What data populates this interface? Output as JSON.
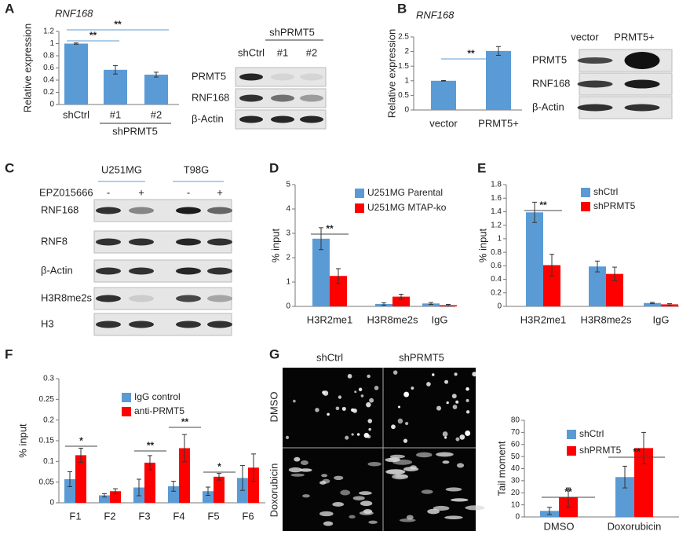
{
  "chart_data": [
    {
      "type": "bar",
      "title": "RNF168",
      "y_label": "Relative expression",
      "categories": [
        "shCtrl",
        "#1",
        "#2"
      ],
      "group_label": "shPRMT5",
      "values": [
        1.0,
        0.57,
        0.49
      ],
      "errors": [
        0.01,
        0.07,
        0.04
      ],
      "color": "#5b9bd5",
      "ylim": [
        0,
        1.2
      ],
      "yticks": [
        0,
        0.2,
        0.4,
        0.6,
        0.8,
        1,
        1.2
      ],
      "annotations": [
        "**",
        "**"
      ]
    },
    {
      "type": "bar",
      "title": "RNF168",
      "y_label": "Relative expression",
      "categories": [
        "vector",
        "PRMT5+"
      ],
      "values": [
        1.0,
        2.02
      ],
      "errors": [
        0.01,
        0.15
      ],
      "color": "#5b9bd5",
      "ylim": [
        0,
        2.5
      ],
      "yticks": [
        0,
        0.5,
        1,
        1.5,
        2,
        2.5
      ],
      "annotations": [
        "**"
      ]
    },
    {
      "type": "bar",
      "y_label": "% input",
      "categories": [
        "H3R2me1",
        "H3R8me2s",
        "IgG"
      ],
      "series": [
        {
          "name": "U251MG Parental",
          "color": "#5b9bd5",
          "values": [
            2.78,
            0.1,
            0.12
          ],
          "errors": [
            0.45,
            0.05,
            0.04
          ]
        },
        {
          "name": "U251MG MTAP-ko",
          "color": "#ff0000",
          "values": [
            1.25,
            0.4,
            0.05
          ],
          "errors": [
            0.3,
            0.1,
            0.03
          ]
        }
      ],
      "ylim": [
        0,
        5
      ],
      "yticks": [
        0,
        1,
        2,
        3,
        4,
        5
      ],
      "annotations": [
        "**"
      ]
    },
    {
      "type": "bar",
      "y_label": "% input",
      "categories": [
        "H3R2me1",
        "H3R8me2s",
        "IgG"
      ],
      "series": [
        {
          "name": "shCtrl",
          "color": "#5b9bd5",
          "values": [
            1.39,
            0.59,
            0.05
          ],
          "errors": [
            0.15,
            0.08,
            0.01
          ]
        },
        {
          "name": "shPRMT5",
          "color": "#ff0000",
          "values": [
            0.61,
            0.48,
            0.03
          ],
          "errors": [
            0.16,
            0.1,
            0.01
          ]
        }
      ],
      "ylim": [
        0,
        1.8
      ],
      "yticks": [
        0,
        0.2,
        0.4,
        0.6,
        0.8,
        1,
        1.2,
        1.4,
        1.6,
        1.8
      ],
      "annotations": [
        "**"
      ]
    },
    {
      "type": "bar",
      "y_label": "% input",
      "categories": [
        "F1",
        "F2",
        "F3",
        "F4",
        "F5",
        "F6"
      ],
      "series": [
        {
          "name": "IgG control",
          "color": "#5b9bd5",
          "values": [
            0.057,
            0.018,
            0.037,
            0.04,
            0.028,
            0.06
          ],
          "errors": [
            0.018,
            0.004,
            0.02,
            0.012,
            0.01,
            0.03
          ]
        },
        {
          "name": "anti-PRMT5",
          "color": "#ff0000",
          "values": [
            0.115,
            0.028,
            0.097,
            0.132,
            0.063,
            0.085
          ],
          "errors": [
            0.017,
            0.006,
            0.017,
            0.033,
            0.008,
            0.033
          ]
        }
      ],
      "ylim": [
        0,
        0.3
      ],
      "yticks": [
        0,
        0.05,
        0.1,
        0.15,
        0.2,
        0.25,
        0.3
      ],
      "annotations": [
        "*",
        "**",
        "**",
        "*"
      ]
    },
    {
      "type": "bar",
      "y_label": "Tail moment",
      "categories": [
        "DMSO",
        "Doxorubicin"
      ],
      "series": [
        {
          "name": "shCtrl",
          "color": "#5b9bd5",
          "values": [
            5,
            33
          ],
          "errors": [
            3,
            9
          ]
        },
        {
          "name": "shPRMT5",
          "color": "#ff0000",
          "values": [
            16,
            57
          ],
          "errors": [
            8,
            13
          ]
        }
      ],
      "ylim": [
        0,
        80
      ],
      "yticks": [
        0,
        10,
        20,
        30,
        40,
        50,
        60,
        70,
        80
      ],
      "annotations": [
        "**",
        "**"
      ]
    }
  ],
  "panels": [
    "A",
    "B",
    "C",
    "D",
    "E",
    "F",
    "G"
  ],
  "blots": [
    {
      "header": "shPRMT5",
      "lanes": [
        "shCtrl",
        "#1",
        "#2"
      ],
      "rows": [
        "PRMT5",
        "RNF168",
        "β-Actin"
      ]
    },
    {
      "lanes": [
        "vector",
        "PRMT5+"
      ],
      "rows": [
        "PRMT5",
        "RNF168",
        "β-Actin"
      ]
    },
    {
      "groups": [
        "U251MG",
        "T98G"
      ],
      "treatment": "EPZ015666",
      "lanes": [
        "-",
        "+",
        "-",
        "+"
      ],
      "rows": [
        "RNF168",
        "RNF8",
        "β-Actin",
        "H3R8me2s",
        "H3"
      ]
    }
  ],
  "images": {
    "columns": [
      "shCtrl",
      "shPRMT5"
    ],
    "rows": [
      "DMSO",
      "Doxorubicin"
    ]
  }
}
